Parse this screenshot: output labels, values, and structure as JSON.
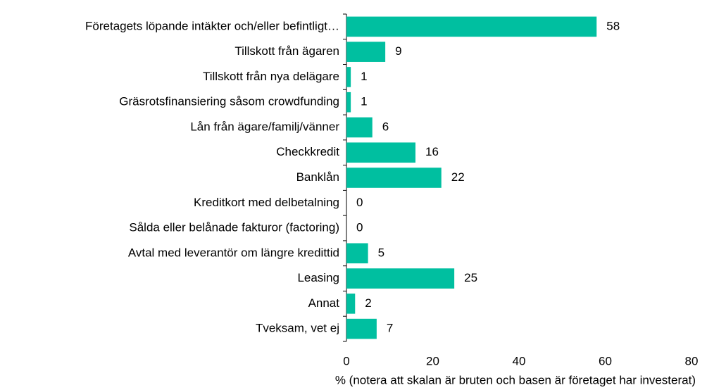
{
  "chart_data": {
    "type": "bar",
    "orientation": "horizontal",
    "categories": [
      "Företagets löpande intäkter och/eller befintligt…",
      "Tillskott från ägaren",
      "Tillskott från nya delägare",
      "Gräsrotsfinansiering såsom crowdfunding",
      "Lån från ägare/familj/vänner",
      "Checkkredit",
      "Banklån",
      "Kreditkort med delbetalning",
      "Sålda eller belånade fakturor (factoring)",
      "Avtal med leverantör om längre kredittid",
      "Leasing",
      "Annat",
      "Tveksam, vet ej"
    ],
    "values": [
      58,
      9,
      1,
      1,
      6,
      16,
      22,
      0,
      0,
      5,
      25,
      2,
      7
    ],
    "color": "#00bfa0",
    "xlabel": "% (notera att skalan är bruten och basen är företaget har investerat)",
    "xlim": [
      0,
      80
    ],
    "xticks": [
      0,
      20,
      40,
      60,
      80
    ],
    "grid": false
  }
}
